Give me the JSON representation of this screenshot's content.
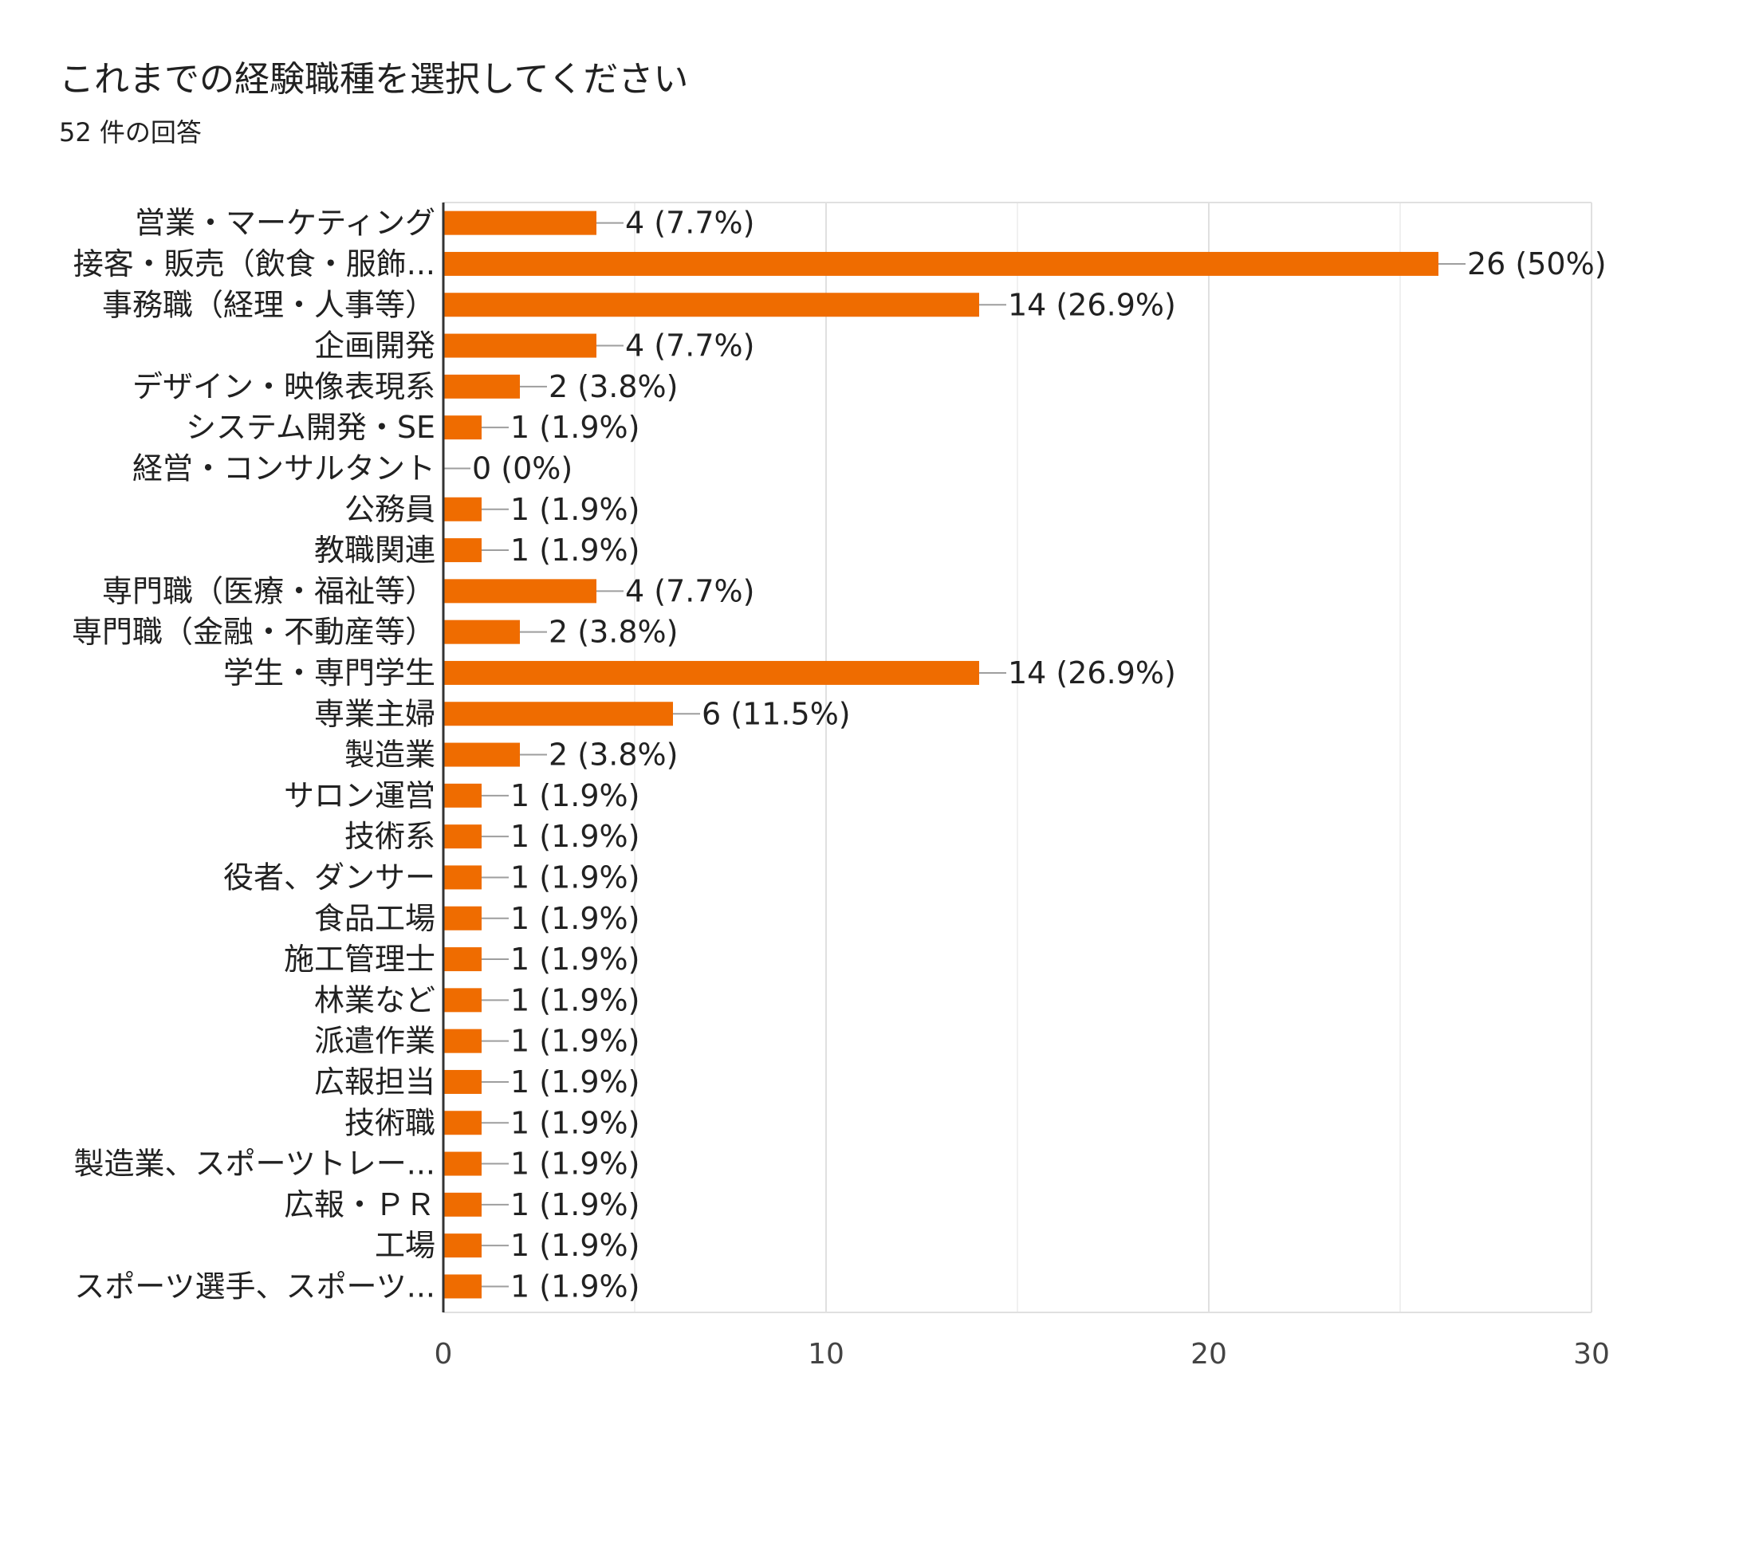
{
  "chart_data": {
    "type": "bar",
    "orientation": "horizontal",
    "title": "これまでの経験職種を選択してください",
    "subtitle": "52 件の回答",
    "categories": [
      "営業・マーケティング",
      "接客・販売（飲食・服飾...",
      "事務職（経理・人事等）",
      "企画開発",
      "デザイン・映像表現系",
      "システム開発・SE",
      "経営・コンサルタント",
      "公務員",
      "教職関連",
      "専門職（医療・福祉等）",
      "専門職（金融・不動産等）",
      "学生・専門学生",
      "専業主婦",
      "製造業",
      "サロン運営",
      "技術系",
      "役者、ダンサー",
      "食品工場",
      "施工管理士",
      "林業など",
      "派遣作業",
      "広報担当",
      "技術職",
      "製造業、スポーツトレー...",
      "広報・ＰＲ",
      "工場",
      "スポーツ選手、スポーツ..."
    ],
    "values": [
      4,
      26,
      14,
      4,
      2,
      1,
      0,
      1,
      1,
      4,
      2,
      14,
      6,
      2,
      1,
      1,
      1,
      1,
      1,
      1,
      1,
      1,
      1,
      1,
      1,
      1,
      1
    ],
    "data_labels": [
      "4 (7.7%)",
      "26 (50%)",
      "14 (26.9%)",
      "4 (7.7%)",
      "2 (3.8%)",
      "1 (1.9%)",
      "0 (0%)",
      "1 (1.9%)",
      "1 (1.9%)",
      "4 (7.7%)",
      "2 (3.8%)",
      "14 (26.9%)",
      "6 (11.5%)",
      "2 (3.8%)",
      "1 (1.9%)",
      "1 (1.9%)",
      "1 (1.9%)",
      "1 (1.9%)",
      "1 (1.9%)",
      "1 (1.9%)",
      "1 (1.9%)",
      "1 (1.9%)",
      "1 (1.9%)",
      "1 (1.9%)",
      "1 (1.9%)",
      "1 (1.9%)",
      "1 (1.9%)"
    ],
    "xlim": [
      0,
      30
    ],
    "xticks": [
      0,
      10,
      20,
      30
    ],
    "grid": true,
    "bar_color": "#ef6c00"
  }
}
